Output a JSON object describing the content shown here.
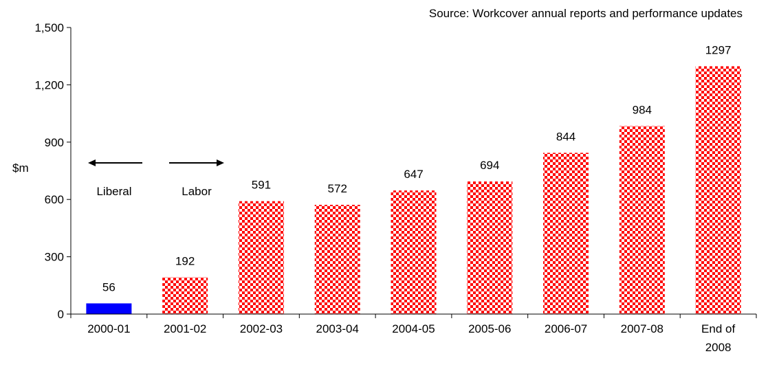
{
  "chart_data": {
    "type": "bar",
    "title": "",
    "source": "Source: Workcover annual reports and performance updates",
    "xlabel": "",
    "ylabel": "$m",
    "ylim": [
      0,
      1500
    ],
    "yticks": [
      0,
      300,
      600,
      900,
      1200,
      1500
    ],
    "ytick_labels": [
      "0",
      "300",
      "600",
      "900",
      "1,200",
      "1,500"
    ],
    "grid": false,
    "legend": "none",
    "categories": [
      "2000-01",
      "2001-02",
      "2002-03",
      "2003-04",
      "2004-05",
      "2005-06",
      "2006-07",
      "2007-08",
      "End of 2008"
    ],
    "values": [
      56,
      192,
      591,
      572,
      647,
      694,
      844,
      984,
      1297
    ],
    "data_labels": [
      "56",
      "192",
      "591",
      "572",
      "647",
      "694",
      "844",
      "984",
      "1297"
    ],
    "bar_styles": [
      "solid",
      "checker",
      "checker",
      "checker",
      "checker",
      "checker",
      "checker",
      "checker",
      "checker"
    ],
    "colors": {
      "solid_bar": "#0000ff",
      "checker_primary": "#ff0000",
      "checker_secondary": "#ffffff",
      "axis": "#000000"
    },
    "annotations": {
      "left_arrow_label": "Liberal",
      "right_arrow_label": "Labor"
    }
  }
}
